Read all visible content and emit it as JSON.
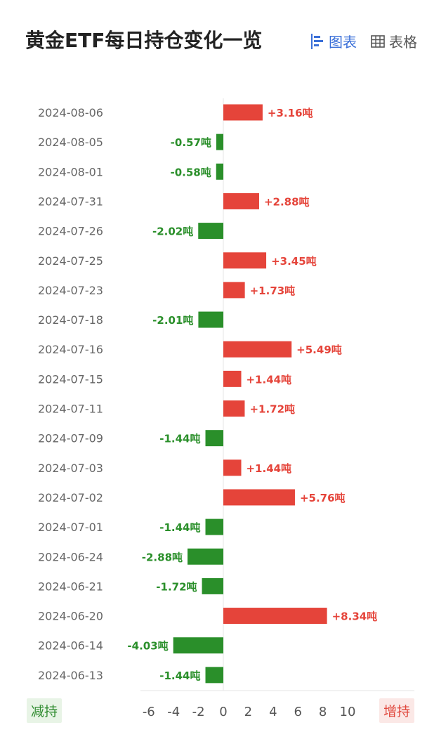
{
  "header": {
    "title": "黄金ETF每日持仓变化一览",
    "view_chart_label": "图表",
    "view_table_label": "表格",
    "view_chart_icon": "bar-chart-icon",
    "view_table_icon": "table-grid-icon"
  },
  "colors": {
    "positive": "#e5443a",
    "negative": "#2a8f2a",
    "active_tab": "#3a6fd8"
  },
  "footer": {
    "reduce_label": "减持",
    "increase_label": "增持"
  },
  "chart_data": {
    "type": "bar",
    "orientation": "horizontal",
    "unit": "吨",
    "categories": [
      "2024-08-06",
      "2024-08-05",
      "2024-08-01",
      "2024-07-31",
      "2024-07-26",
      "2024-07-25",
      "2024-07-23",
      "2024-07-18",
      "2024-07-16",
      "2024-07-15",
      "2024-07-11",
      "2024-07-09",
      "2024-07-03",
      "2024-07-02",
      "2024-07-01",
      "2024-06-24",
      "2024-06-21",
      "2024-06-20",
      "2024-06-14",
      "2024-06-13"
    ],
    "values": [
      3.16,
      -0.57,
      -0.58,
      2.88,
      -2.02,
      3.45,
      1.73,
      -2.01,
      5.49,
      1.44,
      1.72,
      -1.44,
      1.44,
      5.76,
      -1.44,
      -2.88,
      -1.72,
      8.34,
      -4.03,
      -1.44
    ],
    "data_labels": [
      "+3.16吨",
      "-0.57吨",
      "-0.58吨",
      "+2.88吨",
      "-2.02吨",
      "+3.45吨",
      "+1.73吨",
      "-2.01吨",
      "+5.49吨",
      "+1.44吨",
      "+1.72吨",
      "-1.44吨",
      "+1.44吨",
      "+5.76吨",
      "-1.44吨",
      "-2.88吨",
      "-1.72吨",
      "+8.34吨",
      "-4.03吨",
      "-1.44吨"
    ],
    "x_ticks": [
      "-6",
      "-4",
      "-2",
      "0",
      "2",
      "4",
      "6",
      "8",
      "10"
    ],
    "xlim": [
      -6,
      10
    ],
    "grid": false
  }
}
